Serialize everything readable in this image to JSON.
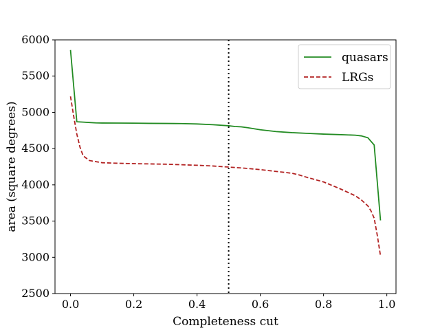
{
  "chart_data": {
    "type": "line",
    "title": "",
    "xlabel": "Completeness cut",
    "ylabel": "area (square degrees)",
    "xlim": [
      -0.049,
      1.029
    ],
    "ylim": [
      2500,
      6000
    ],
    "xticks": [
      0.0,
      0.2,
      0.4,
      0.6,
      0.8,
      1.0
    ],
    "xtick_labels": [
      "0.0",
      "0.2",
      "0.4",
      "0.6",
      "0.8",
      "1.0"
    ],
    "yticks": [
      2500,
      3000,
      3500,
      4000,
      4500,
      5000,
      5500,
      6000
    ],
    "ytick_labels": [
      "2500",
      "3000",
      "3500",
      "4000",
      "4500",
      "5000",
      "5500",
      "6000"
    ],
    "grid": false,
    "legend_position": "top-right",
    "vline": {
      "x": 0.5,
      "color": "#000000",
      "style": "dotted"
    },
    "series": [
      {
        "name": "quasars",
        "color": "#228b22",
        "style": "solid",
        "x": [
          0.0,
          0.02,
          0.04,
          0.06,
          0.08,
          0.1,
          0.15,
          0.2,
          0.25,
          0.3,
          0.35,
          0.4,
          0.45,
          0.5,
          0.52,
          0.54,
          0.56,
          0.6,
          0.65,
          0.7,
          0.75,
          0.8,
          0.85,
          0.9,
          0.92,
          0.94,
          0.96,
          0.98
        ],
        "values": [
          5860,
          4870,
          4865,
          4860,
          4855,
          4853,
          4852,
          4851,
          4848,
          4847,
          4845,
          4840,
          4830,
          4815,
          4805,
          4800,
          4788,
          4760,
          4735,
          4720,
          4710,
          4700,
          4693,
          4685,
          4675,
          4650,
          4550,
          3510
        ]
      },
      {
        "name": "LRGs",
        "color": "#b22222",
        "style": "dashed",
        "x": [
          0.0,
          0.01,
          0.02,
          0.03,
          0.04,
          0.06,
          0.08,
          0.1,
          0.15,
          0.2,
          0.3,
          0.4,
          0.45,
          0.5,
          0.55,
          0.6,
          0.65,
          0.7,
          0.72,
          0.75,
          0.8,
          0.85,
          0.9,
          0.92,
          0.94,
          0.95,
          0.96,
          0.97,
          0.98
        ],
        "values": [
          5220,
          4950,
          4700,
          4520,
          4400,
          4335,
          4320,
          4305,
          4298,
          4292,
          4285,
          4270,
          4260,
          4245,
          4230,
          4210,
          4185,
          4160,
          4140,
          4100,
          4040,
          3950,
          3850,
          3790,
          3710,
          3640,
          3540,
          3300,
          3020
        ]
      }
    ]
  }
}
